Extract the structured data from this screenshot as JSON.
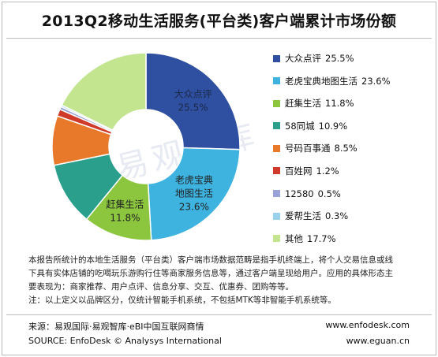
{
  "title": "2013Q2移动生活服务(平台类)客户端累计市场份额",
  "watermark": "易观智库",
  "chart_data": {
    "type": "pie",
    "title": "2013Q2移动生活服务(平台类)客户端累计市场份额",
    "categories": [
      "大众点评",
      "老虎宝典地图生活",
      "赶集生活",
      "58同城",
      "号码百事通",
      "百姓网",
      "12580",
      "爱帮生活",
      "其他"
    ],
    "values": [
      25.5,
      23.6,
      11.8,
      10.9,
      8.5,
      1.2,
      0.5,
      0.3,
      17.7
    ],
    "unit": "%",
    "colors": [
      "#2f4fa0",
      "#3eb3e0",
      "#8cc63f",
      "#2aa08c",
      "#e8782a",
      "#cf3a2a",
      "#9aa3d8",
      "#9ad2ee",
      "#c3e590"
    ],
    "legend_position": "right",
    "slice_labels": [
      {
        "lines": [
          "大众点评",
          "25.5%"
        ]
      },
      {
        "lines": [
          "老虎宝典",
          "地图生活",
          "23.6%"
        ]
      },
      {
        "lines": [
          "赶集生活",
          "11.8%"
        ]
      },
      {
        "lines": []
      },
      {
        "lines": []
      },
      {
        "lines": []
      },
      {
        "lines": []
      },
      {
        "lines": []
      },
      {
        "lines": []
      }
    ]
  },
  "legend": [
    {
      "label": "大众点评",
      "pct": "25.5%"
    },
    {
      "label": "老虎宝典地图生活",
      "pct": "23.6%"
    },
    {
      "label": "赶集生活",
      "pct": "11.8%"
    },
    {
      "label": "58同城",
      "pct": "10.9%"
    },
    {
      "label": "号码百事通",
      "pct": "8.5%"
    },
    {
      "label": "百姓网",
      "pct": "1.2%"
    },
    {
      "label": "12580",
      "pct": "0.5%"
    },
    {
      "label": "爱帮生活",
      "pct": "0.3%"
    },
    {
      "label": "其他",
      "pct": "17.7%"
    }
  ],
  "note": {
    "line1": "本报告所统计的本地生活服务（平台类）客户端市场数据范畴是指手机终端上，将个人交易信息或线",
    "line2": "下具有实体店铺的吃喝玩乐游购行住等商家服务信息等，通过客户端呈现给用户。应用的具体形态主",
    "line3": "要表现为：商家推荐、用户点评、信息分享、交互、优惠券、团购等等。",
    "line4": "注：以上定义以品牌区分，仅统计智能手机系统，不包括MTK等非智能手机系统等。"
  },
  "footer": {
    "source_cn": "来源：易观国际·易观智库·eBI中国互联网商情",
    "source_en": "SOURCE: EnfoDesk © Analysys International",
    "url1": "www.enfodesk.com",
    "url2": "www.eguan.cn"
  }
}
